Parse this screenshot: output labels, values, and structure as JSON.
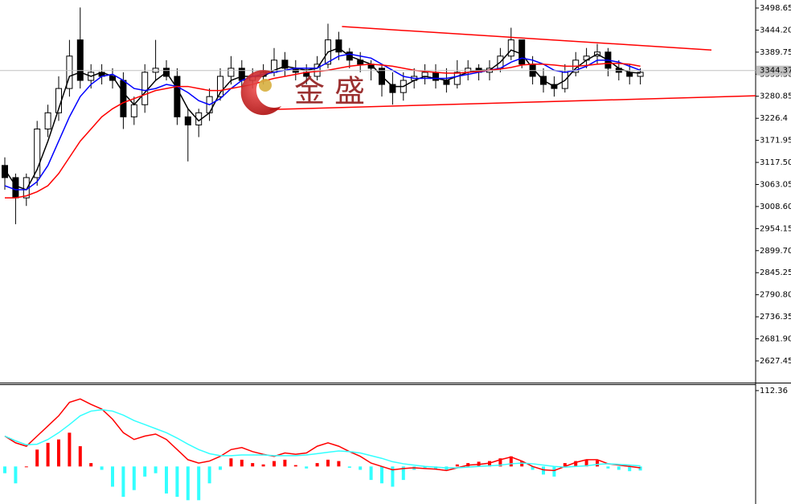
{
  "chart_data": [
    {
      "type": "candlestick",
      "ylim": [
        2573.8,
        3518.5
      ],
      "yticks": [
        3498.65,
        {
          "value": 3444.2,
          "label": "3444.20"
        },
        3389.75,
        {
          "value": 3335.3,
          "label": "3335.30"
        },
        3280.85,
        3226.4,
        3171.95,
        {
          "value": 3117.5,
          "label": "3117.50"
        },
        3063.05,
        {
          "value": 3008.6,
          "label": "3008.60"
        },
        2954.15,
        {
          "value": 2899.7,
          "label": "2899.70"
        },
        2845.25,
        {
          "value": 2790.8,
          "label": "2790.80"
        },
        2736.35,
        {
          "value": 2681.9,
          "label": "2681.90"
        },
        2627.45
      ],
      "open": [
        3110,
        3080,
        3030,
        3080,
        3200,
        3240,
        3300,
        3420,
        3320,
        3340,
        3330,
        3320,
        3230,
        3260,
        3340,
        3350,
        3330,
        3230,
        3210,
        3240,
        3280,
        3330,
        3350,
        3320,
        3330,
        3340,
        3370,
        3350,
        3340,
        3330,
        3360,
        3420,
        3390,
        3370,
        3360,
        3350,
        3310,
        3290,
        3320,
        3330,
        3340,
        3320,
        3310,
        3340,
        3350,
        3340,
        3350,
        3380,
        3420,
        3360,
        3330,
        3310,
        3300,
        3340,
        3370,
        3380,
        3390,
        3350,
        3340,
        3330
      ],
      "high": [
        3130,
        3090,
        3090,
        3220,
        3260,
        3330,
        3420,
        3500,
        3360,
        3360,
        3350,
        3340,
        3280,
        3360,
        3420,
        3370,
        3350,
        3250,
        3250,
        3300,
        3350,
        3380,
        3370,
        3350,
        3360,
        3400,
        3390,
        3370,
        3360,
        3380,
        3460,
        3440,
        3400,
        3390,
        3370,
        3360,
        3340,
        3340,
        3350,
        3360,
        3360,
        3350,
        3370,
        3370,
        3360,
        3370,
        3400,
        3450,
        3420,
        3380,
        3350,
        3330,
        3360,
        3390,
        3400,
        3410,
        3400,
        3370,
        3360,
        3350
      ],
      "low": [
        3050,
        2965,
        3010,
        3060,
        3180,
        3220,
        3280,
        3300,
        3300,
        3310,
        3300,
        3200,
        3210,
        3240,
        3320,
        3320,
        3210,
        3120,
        3180,
        3220,
        3270,
        3310,
        3300,
        3300,
        3310,
        3330,
        3330,
        3320,
        3310,
        3320,
        3350,
        3370,
        3350,
        3340,
        3320,
        3280,
        3260,
        3270,
        3300,
        3310,
        3300,
        3290,
        3300,
        3320,
        3320,
        3320,
        3340,
        3370,
        3350,
        3310,
        3290,
        3280,
        3290,
        3330,
        3350,
        3360,
        3330,
        3320,
        3310,
        3310
      ],
      "close": [
        3080,
        3030,
        3080,
        3200,
        3240,
        3300,
        3380,
        3320,
        3340,
        3330,
        3320,
        3230,
        3260,
        3340,
        3350,
        3330,
        3230,
        3210,
        3240,
        3280,
        3330,
        3350,
        3320,
        3330,
        3340,
        3370,
        3350,
        3340,
        3330,
        3360,
        3420,
        3390,
        3370,
        3360,
        3350,
        3310,
        3290,
        3320,
        3330,
        3340,
        3320,
        3310,
        3340,
        3350,
        3340,
        3350,
        3380,
        3420,
        3360,
        3330,
        3310,
        3300,
        3340,
        3370,
        3380,
        3390,
        3350,
        3340,
        3330,
        3340
      ],
      "up_color": "#ffffff",
      "down_color": "#000000",
      "series": [
        {
          "color": "#000000",
          "values": [
            3100,
            3060,
            3050,
            3100,
            3170,
            3250,
            3330,
            3340,
            3330,
            3340,
            3330,
            3290,
            3260,
            3290,
            3320,
            3340,
            3300,
            3250,
            3220,
            3240,
            3290,
            3320,
            3330,
            3330,
            3330,
            3345,
            3355,
            3350,
            3345,
            3350,
            3390,
            3400,
            3380,
            3370,
            3360,
            3330,
            3305,
            3305,
            3320,
            3330,
            3325,
            3320,
            3330,
            3340,
            3345,
            3345,
            3365,
            3395,
            3385,
            3350,
            3320,
            3305,
            3320,
            3350,
            3370,
            3385,
            3370,
            3350,
            3340,
            3338
          ]
        },
        {
          "color": "#0000ff",
          "values": [
            3060,
            3050,
            3050,
            3070,
            3110,
            3170,
            3230,
            3280,
            3310,
            3330,
            3335,
            3320,
            3300,
            3295,
            3300,
            3310,
            3305,
            3290,
            3270,
            3260,
            3275,
            3300,
            3320,
            3330,
            3335,
            3340,
            3345,
            3350,
            3350,
            3350,
            3365,
            3380,
            3385,
            3380,
            3375,
            3360,
            3345,
            3330,
            3325,
            3325,
            3325,
            3325,
            3330,
            3335,
            3340,
            3345,
            3350,
            3365,
            3375,
            3370,
            3360,
            3345,
            3340,
            3345,
            3355,
            3370,
            3370,
            3365,
            3355,
            3345
          ]
        },
        {
          "color": "#ff0000",
          "values": [
            3030,
            3030,
            3035,
            3045,
            3060,
            3090,
            3130,
            3170,
            3200,
            3230,
            3250,
            3265,
            3275,
            3285,
            3295,
            3300,
            3305,
            3305,
            3300,
            3295,
            3295,
            3300,
            3305,
            3310,
            3318,
            3325,
            3330,
            3335,
            3340,
            3342,
            3345,
            3350,
            3355,
            3358,
            3360,
            3358,
            3355,
            3350,
            3345,
            3342,
            3340,
            3338,
            3338,
            3340,
            3342,
            3345,
            3348,
            3352,
            3358,
            3360,
            3360,
            3358,
            3355,
            3355,
            3357,
            3360,
            3362,
            3362,
            3360,
            3355
          ]
        }
      ],
      "trendlines": [
        {
          "color": "#ff0000",
          "x": [
            31.3,
            65.6
          ],
          "y": [
            3453,
            3395
          ]
        },
        {
          "color": "#ff0000",
          "x": [
            24.6,
            69.7
          ],
          "y": [
            3248,
            3282
          ]
        }
      ],
      "current_price": 3344.37,
      "watermark": "金 盛"
    },
    {
      "type": "macd",
      "ylim": [
        -55.6,
        120.6
      ],
      "yticks": [
        112.36
      ],
      "histogram": [
        -10,
        -25,
        0,
        25,
        35,
        40,
        50,
        30,
        5,
        -5,
        -30,
        -45,
        -35,
        -15,
        -10,
        -40,
        -45,
        -50,
        -50,
        -25,
        -5,
        12,
        10,
        5,
        3,
        8,
        10,
        2,
        -3,
        5,
        10,
        8,
        -2,
        -5,
        -20,
        -25,
        -30,
        -20,
        -5,
        -3,
        -4,
        -5,
        3,
        5,
        7,
        8,
        12,
        15,
        8,
        -5,
        -12,
        -15,
        5,
        8,
        10,
        9,
        -3,
        -5,
        -7,
        -6
      ],
      "pos_color": "#ff0000",
      "neg_color": "#33ffff",
      "series": [
        {
          "color": "#ff0000",
          "values": [
            45,
            35,
            30,
            45,
            60,
            75,
            95,
            100,
            92,
            85,
            70,
            50,
            40,
            45,
            48,
            40,
            25,
            10,
            5,
            8,
            15,
            25,
            28,
            22,
            18,
            15,
            20,
            18,
            20,
            30,
            35,
            30,
            22,
            15,
            5,
            0,
            -5,
            -3,
            -2,
            -3,
            -4,
            -6,
            -2,
            2,
            3,
            5,
            10,
            14,
            8,
            0,
            -5,
            -6,
            0,
            6,
            10,
            10,
            4,
            2,
            0,
            -2
          ]
        },
        {
          "color": "#33ffff",
          "values": [
            45,
            38,
            32,
            33,
            40,
            50,
            62,
            75,
            82,
            84,
            82,
            76,
            68,
            62,
            56,
            50,
            42,
            33,
            25,
            19,
            16,
            16,
            17,
            17,
            17,
            16,
            16,
            16,
            17,
            19,
            21,
            23,
            22,
            20,
            16,
            12,
            7,
            4,
            2,
            0,
            -1,
            -2,
            -2,
            -1,
            0,
            1,
            2,
            4,
            5,
            4,
            2,
            0,
            -1,
            0,
            1,
            3,
            4,
            3,
            2,
            1
          ]
        }
      ]
    }
  ]
}
